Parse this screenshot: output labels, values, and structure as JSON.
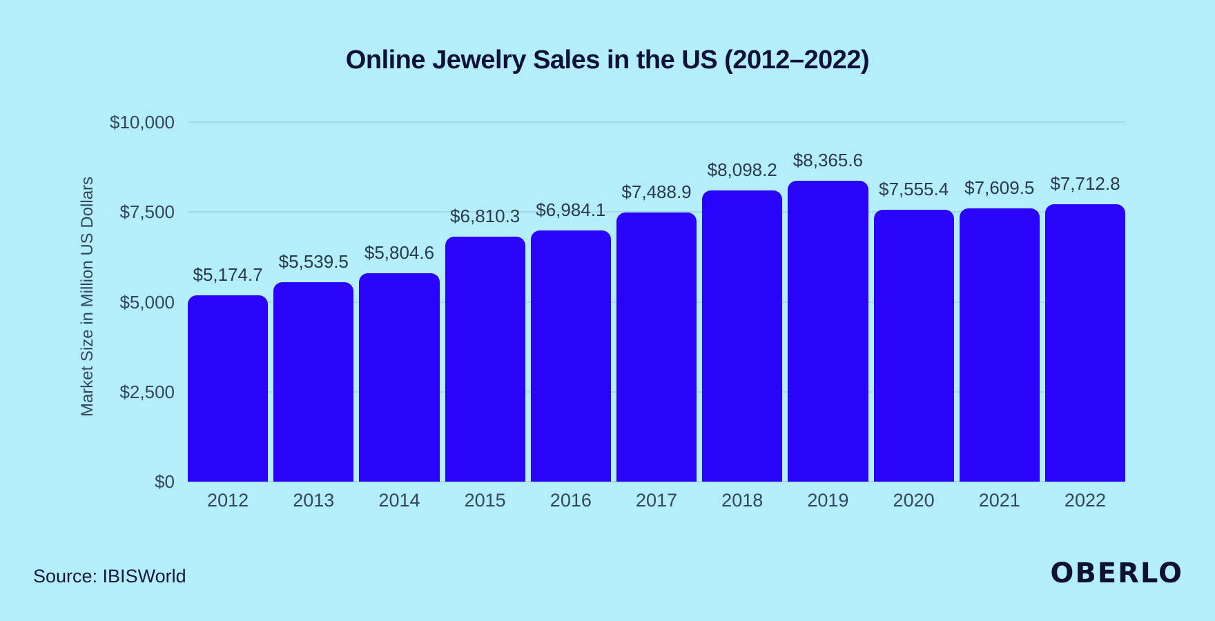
{
  "source": "Source: IBISWorld",
  "brand": "OBERLO",
  "colors": {
    "background": "#b5eefb",
    "bar": "#2a04f8",
    "title_text": "#0f1238",
    "axis_text": "#33475a",
    "value_text": "#2a3a4a",
    "gridline": "#a6d9e6",
    "brand_text": "#0e1232"
  },
  "chart_data": {
    "type": "bar",
    "title": "Online Jewelry Sales in the US (2012–2022)",
    "categories": [
      "2012",
      "2013",
      "2014",
      "2015",
      "2016",
      "2017",
      "2018",
      "2019",
      "2020",
      "2021",
      "2022"
    ],
    "values": [
      5174.7,
      5539.5,
      5804.6,
      6810.3,
      6984.1,
      7488.9,
      8098.2,
      8365.6,
      7555.4,
      7609.5,
      7712.8
    ],
    "value_labels": [
      "$5,174.7",
      "$5,539.5",
      "$5,804.6",
      "$6,810.3",
      "$6,984.1",
      "$7,488.9",
      "$8,098.2",
      "$8,365.6",
      "$7,555.4",
      "$7,609.5",
      "$7,712.8"
    ],
    "xlabel": "",
    "ylabel": "Market Size in Million US Dollars",
    "ylim": [
      0,
      10000
    ],
    "yticks": [
      0,
      2500,
      5000,
      7500,
      10000
    ],
    "ytick_labels": [
      "$0",
      "$2,500",
      "$5,000",
      "$7,500",
      "$10,000"
    ],
    "grid": true,
    "legend": false,
    "bar_color": "#2a04f8",
    "background_color": "#b5eefb"
  }
}
